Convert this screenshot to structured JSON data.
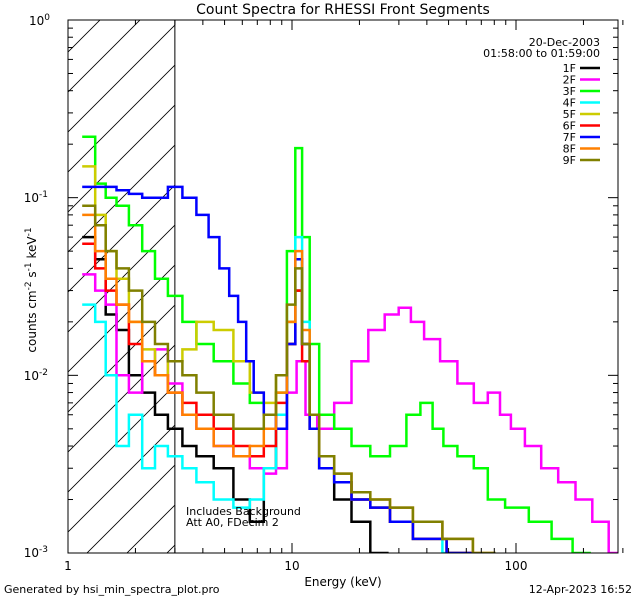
{
  "chart_data": {
    "type": "line",
    "title": "Count Spectra for RHESSI Front Segments",
    "xlabel": "Energy (keV)",
    "ylabel_parts": [
      "counts cm",
      "-2",
      " s",
      "-1",
      " keV",
      "-1"
    ],
    "x_scale": "log",
    "y_scale": "log",
    "xlim": [
      1,
      300
    ],
    "ylim": [
      0.001,
      1
    ],
    "x_tick_labels": [
      "1",
      "10",
      "100"
    ],
    "y_tick_labels": [
      {
        "base": "10",
        "exp": "0"
      },
      {
        "base": "10",
        "exp": "-1"
      },
      {
        "base": "10",
        "exp": "-2"
      },
      {
        "base": "10",
        "exp": "-3"
      }
    ],
    "date": "20-Dec-2003",
    "time_range": "01:58:00 to 01:59:00",
    "hatched_below_keV": 3,
    "annotations": [
      "Includes Background",
      "Att A0, FDecim 2"
    ],
    "series": [
      {
        "name": "1F",
        "color": "#000000",
        "peak_keV": 10.7,
        "peak_value": 0.03,
        "points": [
          [
            1.25,
            0.06
          ],
          [
            1.4,
            0.045
          ],
          [
            1.55,
            0.022
          ],
          [
            1.75,
            0.018
          ],
          [
            2.0,
            0.01
          ],
          [
            2.3,
            0.008
          ],
          [
            2.6,
            0.006
          ],
          [
            3.0,
            0.005
          ],
          [
            3.5,
            0.004
          ],
          [
            4.0,
            0.0035
          ],
          [
            5.0,
            0.003
          ],
          [
            6.0,
            0.002
          ],
          [
            7.0,
            0.0015
          ],
          [
            8.0,
            0.003
          ],
          [
            9.0,
            0.005
          ],
          [
            10.0,
            0.015
          ],
          [
            10.7,
            0.03
          ],
          [
            11.5,
            0.015
          ],
          [
            12.5,
            0.005
          ],
          [
            14,
            0.003
          ],
          [
            17,
            0.002
          ],
          [
            20,
            0.0015
          ],
          [
            25,
            0.001
          ]
        ]
      },
      {
        "name": "2F",
        "color": "#ff00ff",
        "peak_keV": 30,
        "peak_value": 0.025,
        "points": [
          [
            1.25,
            0.037
          ],
          [
            1.4,
            0.03
          ],
          [
            1.55,
            0.025
          ],
          [
            1.75,
            0.01
          ],
          [
            2.0,
            0.008
          ],
          [
            2.3,
            0.012
          ],
          [
            2.6,
            0.014
          ],
          [
            3.0,
            0.009
          ],
          [
            3.5,
            0.006
          ],
          [
            4.0,
            0.005
          ],
          [
            5.0,
            0.004
          ],
          [
            6.0,
            0.0035
          ],
          [
            7.0,
            0.003
          ],
          [
            8.0,
            0.0028
          ],
          [
            9.0,
            0.003
          ],
          [
            10.0,
            0.008
          ],
          [
            11.0,
            0.012
          ],
          [
            12.0,
            0.006
          ],
          [
            14,
            0.005
          ],
          [
            17,
            0.007
          ],
          [
            20,
            0.012
          ],
          [
            24,
            0.018
          ],
          [
            28,
            0.022
          ],
          [
            32,
            0.024
          ],
          [
            36,
            0.02
          ],
          [
            42,
            0.016
          ],
          [
            50,
            0.012
          ],
          [
            60,
            0.009
          ],
          [
            70,
            0.007
          ],
          [
            80,
            0.008
          ],
          [
            90,
            0.006
          ],
          [
            100,
            0.005
          ],
          [
            120,
            0.004
          ],
          [
            140,
            0.003
          ],
          [
            170,
            0.0025
          ],
          [
            200,
            0.002
          ],
          [
            240,
            0.0015
          ],
          [
            280,
            0.001
          ]
        ]
      },
      {
        "name": "3F",
        "color": "#00ff00",
        "peak_keV": 10.7,
        "peak_value": 0.19,
        "points": [
          [
            1.25,
            0.22
          ],
          [
            1.4,
            0.12
          ],
          [
            1.55,
            0.1
          ],
          [
            1.75,
            0.09
          ],
          [
            2.0,
            0.07
          ],
          [
            2.3,
            0.05
          ],
          [
            2.6,
            0.035
          ],
          [
            3.0,
            0.028
          ],
          [
            3.5,
            0.02
          ],
          [
            4.0,
            0.015
          ],
          [
            5.0,
            0.012
          ],
          [
            6.0,
            0.009
          ],
          [
            7.0,
            0.007
          ],
          [
            8.0,
            0.006
          ],
          [
            9.0,
            0.008
          ],
          [
            10.0,
            0.05
          ],
          [
            10.7,
            0.19
          ],
          [
            11.5,
            0.06
          ],
          [
            12.5,
            0.015
          ],
          [
            14,
            0.006
          ],
          [
            17,
            0.005
          ],
          [
            20,
            0.004
          ],
          [
            25,
            0.0035
          ],
          [
            30,
            0.004
          ],
          [
            35,
            0.006
          ],
          [
            40,
            0.007
          ],
          [
            45,
            0.005
          ],
          [
            50,
            0.004
          ],
          [
            60,
            0.0035
          ],
          [
            70,
            0.003
          ],
          [
            80,
            0.002
          ],
          [
            100,
            0.0018
          ],
          [
            130,
            0.0015
          ],
          [
            160,
            0.0012
          ],
          [
            200,
            0.001
          ]
        ]
      },
      {
        "name": "4F",
        "color": "#00ffff",
        "peak_keV": 10.7,
        "peak_value": 0.06,
        "points": [
          [
            1.25,
            0.025
          ],
          [
            1.4,
            0.02
          ],
          [
            1.55,
            0.01
          ],
          [
            1.75,
            0.004
          ],
          [
            2.0,
            0.006
          ],
          [
            2.3,
            0.003
          ],
          [
            2.6,
            0.004
          ],
          [
            3.0,
            0.0035
          ],
          [
            3.5,
            0.003
          ],
          [
            4.0,
            0.0025
          ],
          [
            5.0,
            0.002
          ],
          [
            6.0,
            0.0018
          ],
          [
            7.0,
            0.002
          ],
          [
            8.0,
            0.003
          ],
          [
            9.0,
            0.006
          ],
          [
            10.0,
            0.02
          ],
          [
            10.7,
            0.06
          ],
          [
            11.5,
            0.02
          ],
          [
            12.5,
            0.006
          ],
          [
            14,
            0.003
          ],
          [
            17,
            0.0025
          ],
          [
            20,
            0.002
          ],
          [
            25,
            0.0018
          ],
          [
            30,
            0.0015
          ],
          [
            40,
            0.0012
          ],
          [
            55,
            0.001
          ]
        ]
      },
      {
        "name": "5F",
        "color": "#cccc00",
        "peak_keV": 10.7,
        "peak_value": 0.03,
        "points": [
          [
            1.25,
            0.15
          ],
          [
            1.4,
            0.08
          ],
          [
            1.55,
            0.05
          ],
          [
            1.75,
            0.035
          ],
          [
            2.0,
            0.02
          ],
          [
            2.3,
            0.014
          ],
          [
            2.6,
            0.01
          ],
          [
            3.0,
            0.012
          ],
          [
            3.5,
            0.014
          ],
          [
            4.0,
            0.02
          ],
          [
            5.0,
            0.018
          ],
          [
            6.0,
            0.012
          ],
          [
            7.0,
            0.008
          ],
          [
            8.0,
            0.007
          ],
          [
            9.0,
            0.01
          ],
          [
            10.0,
            0.02
          ],
          [
            10.7,
            0.03
          ],
          [
            11.5,
            0.015
          ],
          [
            12.5,
            0.005
          ],
          [
            14,
            0.003
          ],
          [
            17,
            0.0025
          ],
          [
            20,
            0.002
          ],
          [
            25,
            0.0018
          ],
          [
            30,
            0.0015
          ],
          [
            40,
            0.0012
          ],
          [
            60,
            0.001
          ]
        ]
      },
      {
        "name": "6F",
        "color": "#ff0000",
        "peak_keV": 10.7,
        "peak_value": 0.03,
        "points": [
          [
            1.25,
            0.055
          ],
          [
            1.4,
            0.04
          ],
          [
            1.55,
            0.03
          ],
          [
            1.75,
            0.025
          ],
          [
            2.0,
            0.015
          ],
          [
            2.3,
            0.012
          ],
          [
            2.6,
            0.01
          ],
          [
            3.0,
            0.008
          ],
          [
            3.5,
            0.007
          ],
          [
            4.0,
            0.006
          ],
          [
            5.0,
            0.005
          ],
          [
            6.0,
            0.004
          ],
          [
            7.0,
            0.0035
          ],
          [
            8.0,
            0.004
          ],
          [
            9.0,
            0.007
          ],
          [
            10.0,
            0.015
          ],
          [
            10.7,
            0.03
          ],
          [
            11.5,
            0.012
          ],
          [
            12.5,
            0.005
          ],
          [
            14,
            0.003
          ],
          [
            17,
            0.0025
          ],
          [
            20,
            0.002
          ],
          [
            25,
            0.0018
          ],
          [
            30,
            0.0015
          ],
          [
            40,
            0.0012
          ],
          [
            60,
            0.001
          ]
        ]
      },
      {
        "name": "7F",
        "color": "#0000ff",
        "peak_keV": 10.7,
        "peak_value": 0.045,
        "points": [
          [
            1.25,
            0.115
          ],
          [
            1.4,
            0.115
          ],
          [
            1.55,
            0.115
          ],
          [
            1.75,
            0.11
          ],
          [
            2.0,
            0.105
          ],
          [
            2.3,
            0.1
          ],
          [
            2.6,
            0.1
          ],
          [
            3.0,
            0.115
          ],
          [
            3.5,
            0.1
          ],
          [
            4.0,
            0.08
          ],
          [
            4.5,
            0.06
          ],
          [
            5.0,
            0.04
          ],
          [
            5.5,
            0.028
          ],
          [
            6.0,
            0.02
          ],
          [
            6.5,
            0.012
          ],
          [
            7.0,
            0.008
          ],
          [
            8.0,
            0.006
          ],
          [
            9.0,
            0.005
          ],
          [
            10.0,
            0.015
          ],
          [
            10.7,
            0.045
          ],
          [
            11.5,
            0.015
          ],
          [
            12.5,
            0.005
          ],
          [
            14,
            0.003
          ],
          [
            17,
            0.0025
          ],
          [
            20,
            0.002
          ],
          [
            25,
            0.0018
          ],
          [
            30,
            0.0015
          ],
          [
            40,
            0.0012
          ],
          [
            60,
            0.001
          ]
        ]
      },
      {
        "name": "8F",
        "color": "#ff8000",
        "peak_keV": 10.7,
        "peak_value": 0.05,
        "points": [
          [
            1.25,
            0.08
          ],
          [
            1.4,
            0.05
          ],
          [
            1.55,
            0.035
          ],
          [
            1.75,
            0.025
          ],
          [
            2.0,
            0.02
          ],
          [
            2.3,
            0.012
          ],
          [
            2.6,
            0.01
          ],
          [
            3.0,
            0.008
          ],
          [
            3.5,
            0.006
          ],
          [
            4.0,
            0.005
          ],
          [
            5.0,
            0.004
          ],
          [
            6.0,
            0.0035
          ],
          [
            7.0,
            0.004
          ],
          [
            8.0,
            0.005
          ],
          [
            9.0,
            0.008
          ],
          [
            10.0,
            0.02
          ],
          [
            10.7,
            0.05
          ],
          [
            11.5,
            0.018
          ],
          [
            12.5,
            0.006
          ],
          [
            14,
            0.0035
          ],
          [
            17,
            0.0028
          ],
          [
            20,
            0.0022
          ],
          [
            25,
            0.002
          ],
          [
            30,
            0.0018
          ],
          [
            40,
            0.0015
          ],
          [
            55,
            0.0012
          ],
          [
            75,
            0.001
          ]
        ]
      },
      {
        "name": "9F",
        "color": "#808000",
        "peak_keV": 10.7,
        "peak_value": 0.04,
        "points": [
          [
            1.25,
            0.09
          ],
          [
            1.4,
            0.07
          ],
          [
            1.55,
            0.05
          ],
          [
            1.75,
            0.04
          ],
          [
            2.0,
            0.03
          ],
          [
            2.3,
            0.02
          ],
          [
            2.6,
            0.015
          ],
          [
            3.0,
            0.012
          ],
          [
            3.5,
            0.01
          ],
          [
            4.0,
            0.008
          ],
          [
            5.0,
            0.006
          ],
          [
            6.0,
            0.005
          ],
          [
            7.0,
            0.005
          ],
          [
            8.0,
            0.006
          ],
          [
            9.0,
            0.01
          ],
          [
            10.0,
            0.025
          ],
          [
            10.7,
            0.04
          ],
          [
            11.5,
            0.015
          ],
          [
            12.5,
            0.006
          ],
          [
            14,
            0.0035
          ],
          [
            17,
            0.0028
          ],
          [
            20,
            0.0022
          ],
          [
            25,
            0.002
          ],
          [
            30,
            0.0018
          ],
          [
            40,
            0.0015
          ],
          [
            55,
            0.0012
          ],
          [
            75,
            0.001
          ]
        ]
      }
    ]
  },
  "footer": {
    "generated_by": "Generated by hsi_min_spectra_plot.pro",
    "timestamp": "12-Apr-2023 16:52"
  }
}
